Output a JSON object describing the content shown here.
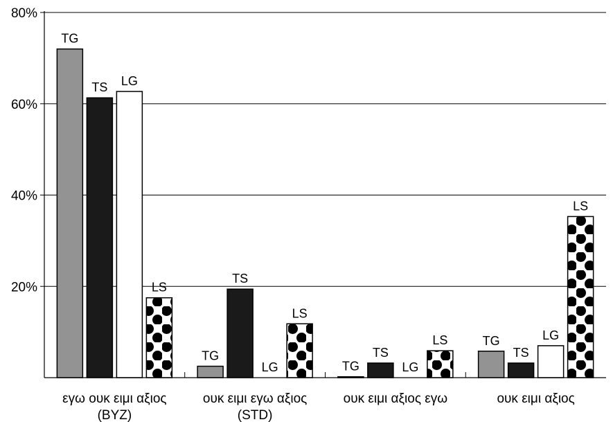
{
  "chart_data": {
    "type": "bar",
    "categories": [
      [
        "εγω ουκ ειμι αξιος",
        "(BYZ)"
      ],
      [
        "ουκ ειμι εγω αξιος",
        "(STD)"
      ],
      [
        "ουκ ειμι αξιος εγω"
      ],
      [
        "ουκ ειμι αξιος"
      ]
    ],
    "series": [
      {
        "name": "TG",
        "values": [
          72,
          2.5,
          0.2,
          5.8
        ],
        "color": "#939393",
        "pattern": "solid"
      },
      {
        "name": "TS",
        "values": [
          61.3,
          19.4,
          3.2,
          3.2
        ],
        "color": "#1a1a1a",
        "pattern": "solid"
      },
      {
        "name": "LG",
        "values": [
          62.7,
          0,
          0,
          7
        ],
        "color": "#ffffff",
        "pattern": "solid"
      },
      {
        "name": "LS",
        "values": [
          17.5,
          11.8,
          5.9,
          35.3
        ],
        "color": "#000000",
        "pattern": "polka-dot"
      }
    ],
    "yticks": [
      "80%",
      "60%",
      "40%",
      "20%"
    ],
    "ytick_values": [
      80,
      60,
      40,
      20
    ],
    "ylim": [
      0,
      80
    ],
    "grid": true,
    "title": "",
    "xlabel": "",
    "ylabel": ""
  }
}
